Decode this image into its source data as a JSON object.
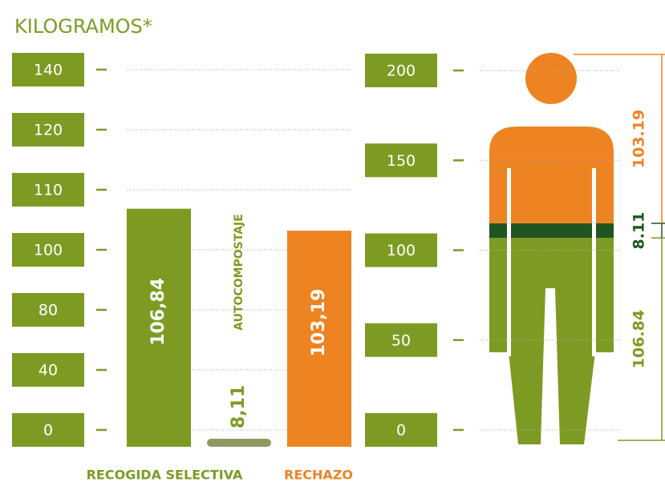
{
  "chart_data": [
    {
      "type": "bar",
      "title": "KILOGRAMOS*",
      "categories": [
        "RECOGIDA SELECTIVA",
        "AUTOCOMPOSTAJE",
        "RECHAZO"
      ],
      "values": [
        106.84,
        8.11,
        103.19
      ],
      "value_labels": [
        "106,84",
        "8,11",
        "103,19"
      ],
      "colors": [
        "#7d9b22",
        "#8d9a62",
        "#ee8322"
      ],
      "ylim": [
        0,
        140
      ],
      "yticks": [
        0,
        40,
        80,
        100,
        110,
        120,
        140
      ],
      "grid": true
    },
    {
      "type": "stacked-figure",
      "values": [
        106.84,
        8.11,
        103.19
      ],
      "colors": [
        "#7d9b22",
        "#1f5520",
        "#ee8322"
      ],
      "ylim": [
        0,
        200
      ],
      "yticks": [
        0,
        50,
        100,
        150,
        200
      ],
      "grid": true
    }
  ]
}
